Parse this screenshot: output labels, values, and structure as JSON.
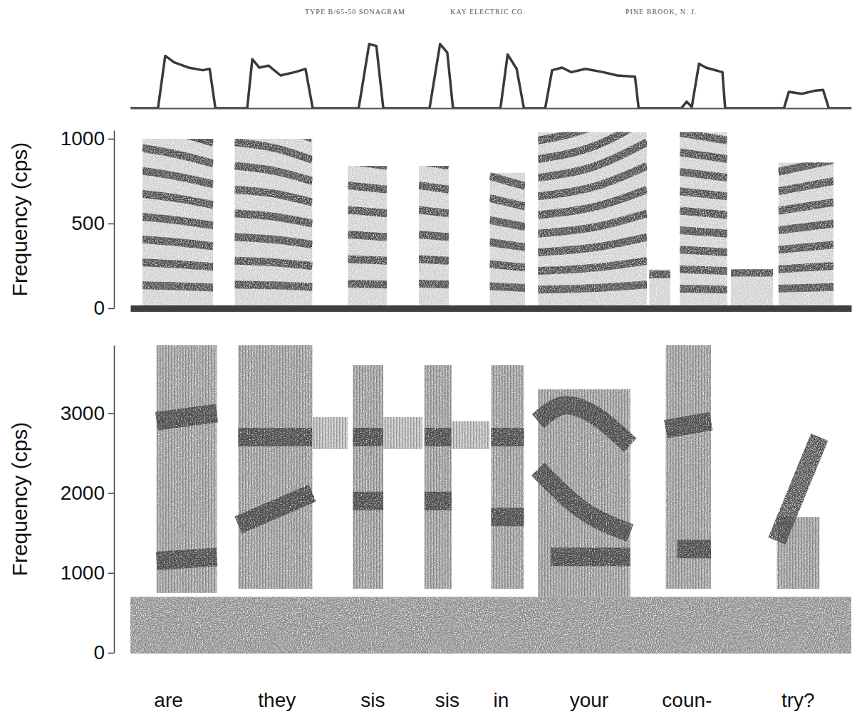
{
  "header": [
    "TYPE B/65-50 SONAGRAM",
    "KAY ELECTRIC CO.",
    "PINE BROOK, N. J."
  ],
  "chart_data": [
    {
      "type": "line",
      "x": [
        0,
        0.092,
        0.116,
        0.146,
        0.194,
        0.241,
        0.264,
        0.283,
        0.389,
        0.406,
        0.429,
        0.46,
        0.5,
        0.547,
        0.583,
        0.607,
        0.76,
        0.795,
        0.819,
        0.842,
        0.996,
        1.031,
        1.055,
        1.074,
        1.232,
        1.256,
        1.286,
        1.31,
        1.381,
        1.404,
        1.437,
        1.468,
        1.515,
        1.574,
        1.621,
        1.68,
        1.692,
        1.834,
        1.852,
        1.869,
        1.893,
        1.916,
        1.971,
        1.98,
        2.176,
        2.192,
        2.235,
        2.282,
        2.306,
        2.325,
        2.4
      ],
      "values": [
        0,
        0,
        0.8,
        0.7,
        0.62,
        0.58,
        0.6,
        0,
        0,
        0.75,
        0.62,
        0.65,
        0.5,
        0.55,
        0.6,
        0,
        0,
        0.98,
        0.95,
        0,
        0,
        0.98,
        0.85,
        0,
        0,
        0.82,
        0.6,
        0,
        0,
        0.58,
        0.62,
        0.55,
        0.6,
        0.55,
        0.5,
        0.48,
        0,
        0,
        0.1,
        0.02,
        0.68,
        0.62,
        0.55,
        0,
        0,
        0.25,
        0.22,
        0.27,
        0.28,
        0,
        0
      ],
      "xlim": [
        0,
        2.4
      ],
      "ylim": [
        0,
        1
      ],
      "tick_labels": false,
      "color": "#3a3a3a"
    },
    {
      "type": "spectrogram",
      "ylabel": "Frequency (cps)",
      "xlim": [
        0,
        2.4
      ],
      "ylim": [
        0,
        1050
      ],
      "yticks": [
        0,
        500,
        1000
      ],
      "tick_labels": "y",
      "color": "#4a4a4a",
      "segments": [
        {
          "start": 0.04,
          "end": 0.276,
          "f0": [
            [
              0.04,
              135
            ],
            [
              0.15,
              130
            ],
            [
              0.276,
              122
            ]
          ],
          "top": 1000
        },
        {
          "start": 0.347,
          "end": 0.606,
          "f0": [
            [
              0.347,
              140
            ],
            [
              0.48,
              135
            ],
            [
              0.606,
              125
            ]
          ],
          "top": 1000
        },
        {
          "start": 0.724,
          "end": 0.854,
          "f0": [
            [
              0.724,
              145
            ],
            [
              0.854,
              140
            ]
          ],
          "top": 840
        },
        {
          "start": 0.96,
          "end": 1.06,
          "f0": [
            [
              0.96,
              145
            ],
            [
              1.06,
              140
            ]
          ],
          "top": 840
        },
        {
          "start": 1.196,
          "end": 1.314,
          "f0": [
            [
              1.196,
              130
            ],
            [
              1.314,
              120
            ]
          ],
          "top": 800
        },
        {
          "start": 1.357,
          "end": 1.72,
          "f0": [
            [
              1.357,
              110
            ],
            [
              1.55,
              120
            ],
            [
              1.72,
              140
            ]
          ],
          "top": 1040
        },
        {
          "start": 1.727,
          "end": 1.798,
          "f0": [
            [
              1.727,
              200
            ],
            [
              1.798,
              200
            ]
          ],
          "top": 230
        },
        {
          "start": 1.829,
          "end": 1.987,
          "f0": [
            [
              1.829,
              115
            ],
            [
              1.987,
              110
            ]
          ],
          "top": 1040
        },
        {
          "start": 1.999,
          "end": 2.14,
          "f0": [
            [
              1.999,
              210
            ],
            [
              2.14,
              210
            ]
          ],
          "top": 230
        },
        {
          "start": 2.157,
          "end": 2.341,
          "f0": [
            [
              2.157,
              115
            ],
            [
              2.341,
              125
            ]
          ],
          "top": 860
        }
      ]
    },
    {
      "type": "spectrogram",
      "ylabel": "Frequency (cps)",
      "xlim": [
        0,
        2.4
      ],
      "ylim": [
        0,
        3850
      ],
      "yticks": [
        0,
        1000,
        2000,
        3000
      ],
      "tick_labels": "y",
      "color": "#4a4a4a",
      "noise_floor": [
        0,
        700
      ],
      "segments": [
        {
          "start": 0.087,
          "end": 0.288,
          "range": [
            750,
            3850
          ],
          "formants": [
            [
              [
                0.087,
                1150
              ],
              [
                0.288,
                1200
              ]
            ],
            [
              [
                0.087,
                2900
              ],
              [
                0.288,
                3000
              ]
            ]
          ]
        },
        {
          "start": 0.359,
          "end": 0.606,
          "range": [
            800,
            3850
          ],
          "formants": [
            [
              [
                0.359,
                1600
              ],
              [
                0.606,
                2000
              ]
            ],
            [
              [
                0.359,
                2700
              ],
              [
                0.606,
                2700
              ]
            ]
          ]
        },
        {
          "start": 0.606,
          "end": 0.724,
          "range": [
            2550,
            2950
          ]
        },
        {
          "start": 0.741,
          "end": 0.842,
          "range": [
            800,
            3600
          ],
          "formants": [
            [
              [
                0.741,
                1900
              ],
              [
                0.842,
                1900
              ]
            ],
            [
              [
                0.741,
                2700
              ],
              [
                0.842,
                2700
              ]
            ]
          ]
        },
        {
          "start": 0.842,
          "end": 0.972,
          "range": [
            2550,
            2950
          ]
        },
        {
          "start": 0.979,
          "end": 1.069,
          "range": [
            800,
            3600
          ],
          "formants": [
            [
              [
                0.979,
                1900
              ],
              [
                1.069,
                1900
              ]
            ],
            [
              [
                0.979,
                2700
              ],
              [
                1.069,
                2700
              ]
            ]
          ]
        },
        {
          "start": 1.069,
          "end": 1.196,
          "range": [
            2550,
            2900
          ]
        },
        {
          "start": 1.201,
          "end": 1.31,
          "range": [
            800,
            3600
          ],
          "formants": [
            [
              [
                1.201,
                1700
              ],
              [
                1.31,
                1700
              ]
            ],
            [
              [
                1.201,
                2700
              ],
              [
                1.31,
                2700
              ]
            ]
          ]
        },
        {
          "start": 1.357,
          "end": 1.664,
          "range": [
            700,
            3300
          ],
          "formants": [
            [
              [
                1.357,
                2900
              ],
              [
                1.45,
                3100
              ],
              [
                1.664,
                2600
              ]
            ],
            [
              [
                1.357,
                2300
              ],
              [
                1.5,
                1800
              ],
              [
                1.664,
                1500
              ]
            ],
            [
              [
                1.4,
                1200
              ],
              [
                1.664,
                1200
              ]
            ]
          ]
        },
        {
          "start": 1.782,
          "end": 1.933,
          "range": [
            800,
            3850
          ],
          "formants": [
            [
              [
                1.782,
                2800
              ],
              [
                1.933,
                2900
              ]
            ],
            [
              [
                1.82,
                1300
              ],
              [
                1.933,
                1300
              ]
            ]
          ]
        },
        {
          "start": 2.152,
          "end": 2.294,
          "range": [
            800,
            1700
          ],
          "formants": [
            [
              [
                2.152,
                1400
              ],
              [
                2.294,
                2700
              ]
            ]
          ]
        }
      ],
      "word_labels": [
        "are",
        "they",
        "sis",
        "sis",
        "in",
        "your",
        "coun-",
        "try?"
      ],
      "word_times": [
        0.127,
        0.488,
        0.807,
        1.055,
        1.234,
        1.527,
        1.853,
        2.223
      ]
    }
  ]
}
